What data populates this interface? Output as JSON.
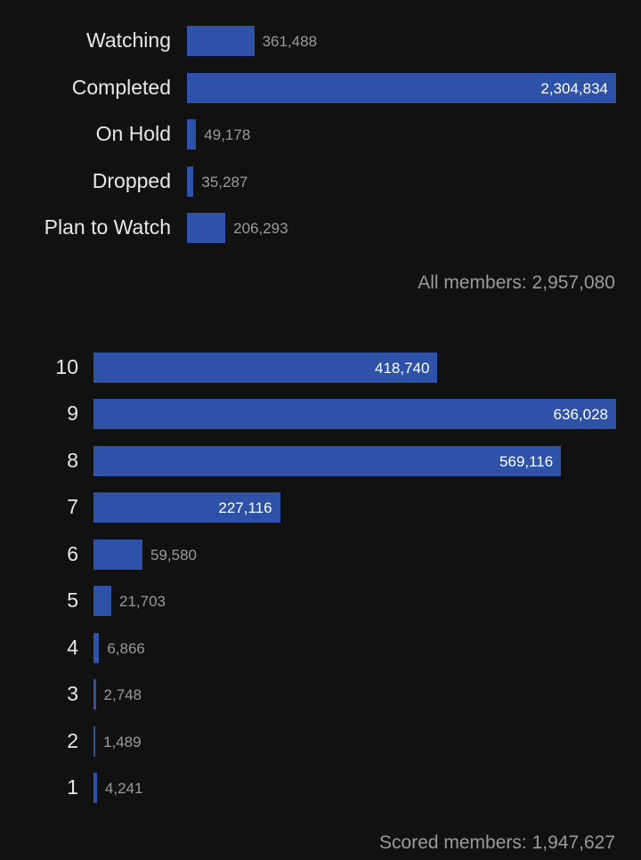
{
  "chart_data": [
    {
      "type": "bar",
      "orientation": "horizontal",
      "categories": [
        "Watching",
        "Completed",
        "On Hold",
        "Dropped",
        "Plan to Watch"
      ],
      "values": [
        361488,
        2304834,
        49178,
        35287,
        206293
      ],
      "value_labels": [
        "361,488",
        "2,304,834",
        "49,178",
        "35,287",
        "206,293"
      ],
      "footer": "All members: 2,957,080",
      "color": "#2e52a8"
    },
    {
      "type": "bar",
      "orientation": "horizontal",
      "categories": [
        "10",
        "9",
        "8",
        "7",
        "6",
        "5",
        "4",
        "3",
        "2",
        "1"
      ],
      "values": [
        418740,
        636028,
        569116,
        227116,
        59580,
        21703,
        6866,
        2748,
        1489,
        4241
      ],
      "value_labels": [
        "418,740",
        "636,028",
        "569,116",
        "227,116",
        "59,580",
        "21,703",
        "6,866",
        "2,748",
        "1,489",
        "4,241"
      ],
      "footer": "Scored members: 1,947,627",
      "color": "#2e52a8"
    }
  ]
}
